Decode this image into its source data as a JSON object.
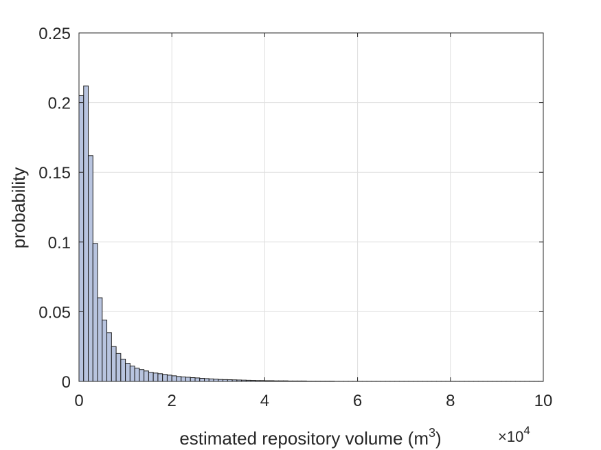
{
  "chart_data": {
    "type": "bar",
    "subtype": "histogram",
    "title": "",
    "xlabel": "estimated repository volume (m",
    "xlabel_superscript": "3",
    "xlabel_suffix": ")",
    "ylabel": "probability",
    "x_exponent_base": "×10",
    "x_exponent_power": "4",
    "xlim": [
      0,
      10
    ],
    "ylim": [
      0,
      0.25
    ],
    "x_ticks": [
      0,
      2,
      4,
      6,
      8,
      10
    ],
    "x_tick_labels": [
      "0",
      "2",
      "4",
      "6",
      "8",
      "10"
    ],
    "y_ticks": [
      0,
      0.05,
      0.1,
      0.15,
      0.2,
      0.25
    ],
    "y_tick_labels": [
      "0",
      "0.05",
      "0.1",
      "0.15",
      "0.2",
      "0.25"
    ],
    "grid": true,
    "bar_color": "#b8c4df",
    "bar_edge_color": "#1a1a1a",
    "bin_width": 0.1,
    "bin_start": 0,
    "values": [
      0.205,
      0.212,
      0.162,
      0.099,
      0.06,
      0.044,
      0.035,
      0.025,
      0.02,
      0.016,
      0.013,
      0.011,
      0.0095,
      0.0085,
      0.0075,
      0.0065,
      0.006,
      0.0055,
      0.005,
      0.0045,
      0.004,
      0.0035,
      0.0032,
      0.003,
      0.0027,
      0.0025,
      0.0022,
      0.002,
      0.0018,
      0.0016,
      0.0014,
      0.0013,
      0.0012,
      0.0011,
      0.001,
      0.0009,
      0.0008,
      0.0007,
      0.0006,
      0.0006,
      0.0005,
      0.0005,
      0.0004,
      0.0004,
      0.0004,
      0.0003,
      0.0003,
      0.0003,
      0.0003,
      0.0002,
      0.0002,
      0.0002,
      0.0002,
      0.0002,
      0.0002,
      0.0001,
      0.0001,
      0.0001,
      0.0001,
      0.0001,
      0.0001,
      0.0001,
      0.0001,
      0.0001,
      0.0001,
      0.0001,
      0.0001,
      0.0001,
      0.0001,
      0.0001,
      0.0001,
      0.0001,
      0.0001,
      0.0001,
      0.0001,
      0.0001,
      0.0001,
      0.0001,
      0.0001,
      0.0001,
      0.0001,
      0.0001,
      0.0001,
      0.0001,
      0.0001,
      0.0001,
      0.0001,
      0.0001,
      0.0001,
      0.0001,
      0.0001,
      0.0001,
      0.0001,
      0.0001,
      0.0001,
      0.0001,
      0.0001,
      0.0001,
      0.0001,
      0.0001
    ]
  }
}
